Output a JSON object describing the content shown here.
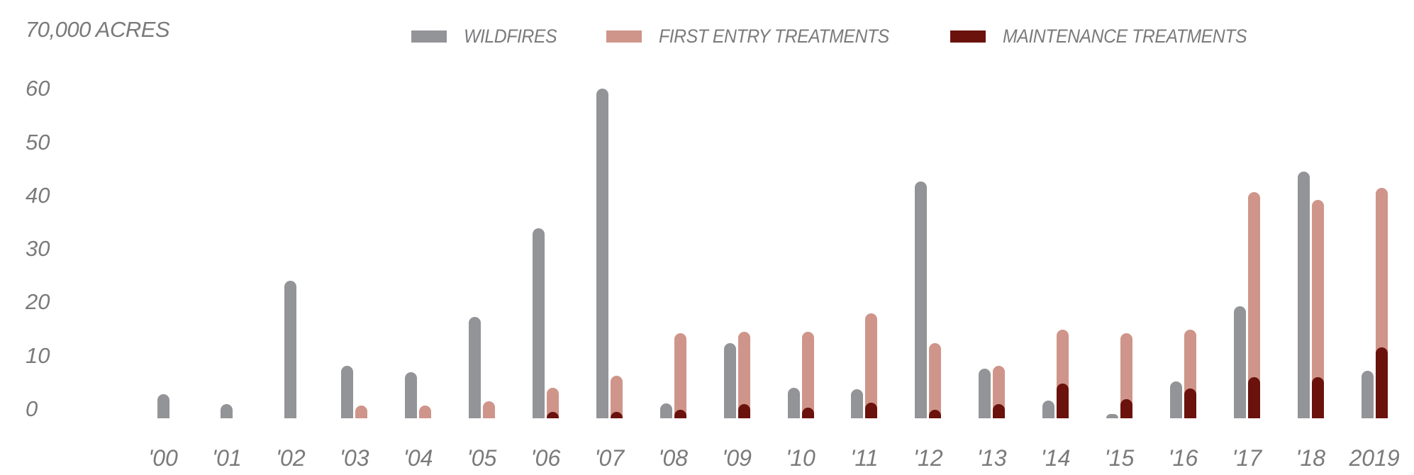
{
  "chart_data": {
    "type": "bar",
    "title": "",
    "ylabel": "70,000 ACRES",
    "xlabel": "",
    "ylim": [
      0,
      70
    ],
    "yticks": [
      0,
      10,
      20,
      30,
      40,
      50,
      60
    ],
    "ytick_labels": [
      "0",
      "10",
      "20",
      "30",
      "40",
      "50",
      "60"
    ],
    "grid": false,
    "legend_position": "top",
    "categories": [
      "'00",
      "'01",
      "'02",
      "'03",
      "'04",
      "'05",
      "'06",
      "'07",
      "'08",
      "'09",
      "'10",
      "'11",
      "'12",
      "'13",
      "'14",
      "'15",
      "'16",
      "'17",
      "'18",
      "2019"
    ],
    "series": [
      {
        "name": "WILDFIRES",
        "color": "#939497",
        "values": [
          4.5,
          2.6,
          25.5,
          9.7,
          8.5,
          18.8,
          35.3,
          61.2,
          2.8,
          14.0,
          5.6,
          5.4,
          44.0,
          9.2,
          3.3,
          0.8,
          6.9,
          20.8,
          45.8,
          8.8
        ]
      },
      {
        "name": "FIRST ENTRY TREATMENTS",
        "color": "#cf958a",
        "values": [
          0,
          0,
          0,
          2.4,
          2.4,
          3.2,
          5.7,
          7.9,
          15.8,
          16.1,
          16.1,
          19.5,
          14.0,
          9.7,
          16.4,
          15.8,
          16.4,
          42.0,
          40.5,
          42.8
        ]
      },
      {
        "name": "MAINTENANCE TREATMENTS",
        "color": "#6b120d",
        "values": [
          0,
          0,
          0,
          0,
          0,
          0,
          1.2,
          1.2,
          1.6,
          2.6,
          2.0,
          2.9,
          1.6,
          2.6,
          6.4,
          3.5,
          5.5,
          7.6,
          7.6,
          13.2
        ]
      }
    ]
  },
  "header": {
    "unit_label": "70,000 ACRES"
  },
  "legend": [
    {
      "label": "WILDFIRES",
      "color": "#939497"
    },
    {
      "label": "FIRST ENTRY TREATMENTS",
      "color": "#cf958a"
    },
    {
      "label": "MAINTENANCE TREATMENTS",
      "color": "#6b120d"
    }
  ]
}
